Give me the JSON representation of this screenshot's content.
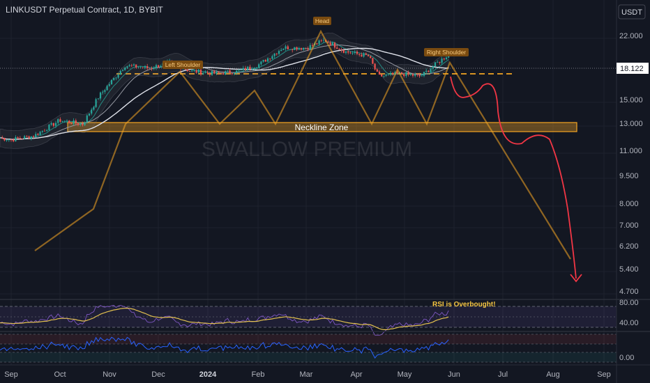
{
  "header": {
    "symbol_line": "LINKUSDT Perpetual Contract, 1D, BYBIT",
    "currency_button": "USDT"
  },
  "price_axis": {
    "ticks": [
      "22.000",
      "18.122",
      "15.000",
      "13.000",
      "11.000",
      "9.500",
      "8.000",
      "7.000",
      "6.200",
      "5.400",
      "4.700"
    ],
    "current_price_label": "18.122"
  },
  "rsi_axis": {
    "ticks": [
      "80.00",
      "40.00"
    ]
  },
  "osc_axis": {
    "ticks": [
      "0.00"
    ]
  },
  "time_axis": {
    "ticks": [
      "Sep",
      "Oct",
      "Nov",
      "Dec",
      "2024",
      "Feb",
      "Mar",
      "Apr",
      "May",
      "Jun",
      "Jul",
      "Aug",
      "Sep"
    ]
  },
  "annotations": {
    "left_shoulder": "Left Shoulder",
    "head": "Head",
    "right_shoulder": "Right Shoulder",
    "neckline": "Neckline Zone",
    "rsi_note": "RSI is Overbought!",
    "watermark": "SWALLOW PREMIUM"
  },
  "colors": {
    "background": "#131722",
    "up_candle": "#26a69a",
    "down_candle": "#ef5350",
    "annotation_orange": "#f5a623",
    "projection_red": "#f23645",
    "ema_white": "#e0e3eb",
    "rsi_yellow": "#e3c14f",
    "osc_blue": "#2962ff"
  },
  "chart_data": {
    "type": "candlestick",
    "title": "LINKUSDT Perpetual Contract, 1D, BYBIT",
    "y_scale": "log",
    "ylim": [
      4.4,
      26.5
    ],
    "current_price": 18.122,
    "neckline_zone": [
      12.4,
      13.2
    ],
    "resistance_level": 17.4,
    "close_path": [
      {
        "date": "2023-08-18",
        "close": 6.3
      },
      {
        "date": "2023-09-01",
        "close": 6.0
      },
      {
        "date": "2023-09-15",
        "close": 6.3
      },
      {
        "date": "2023-10-01",
        "close": 7.7
      },
      {
        "date": "2023-10-15",
        "close": 7.3
      },
      {
        "date": "2023-10-25",
        "close": 10.5
      },
      {
        "date": "2023-11-10",
        "close": 15.5
      },
      {
        "date": "2023-11-25",
        "close": 15.0
      },
      {
        "date": "2023-12-08",
        "close": 16.2
      },
      {
        "date": "2023-12-20",
        "close": 14.5
      },
      {
        "date": "2024-01-05",
        "close": 14.0
      },
      {
        "date": "2024-01-20",
        "close": 14.5
      },
      {
        "date": "2024-02-01",
        "close": 15.8
      },
      {
        "date": "2024-02-15",
        "close": 19.5
      },
      {
        "date": "2024-03-01",
        "close": 19.5
      },
      {
        "date": "2024-03-12",
        "close": 21.5
      },
      {
        "date": "2024-03-25",
        "close": 18.5
      },
      {
        "date": "2024-04-08",
        "close": 17.5
      },
      {
        "date": "2024-04-14",
        "close": 13.5
      },
      {
        "date": "2024-04-28",
        "close": 14.0
      },
      {
        "date": "2024-05-10",
        "close": 13.5
      },
      {
        "date": "2024-05-20",
        "close": 16.0
      },
      {
        "date": "2024-05-28",
        "close": 18.1
      }
    ],
    "rsi": {
      "latest": 72,
      "levels": [
        70,
        50,
        30
      ]
    }
  }
}
